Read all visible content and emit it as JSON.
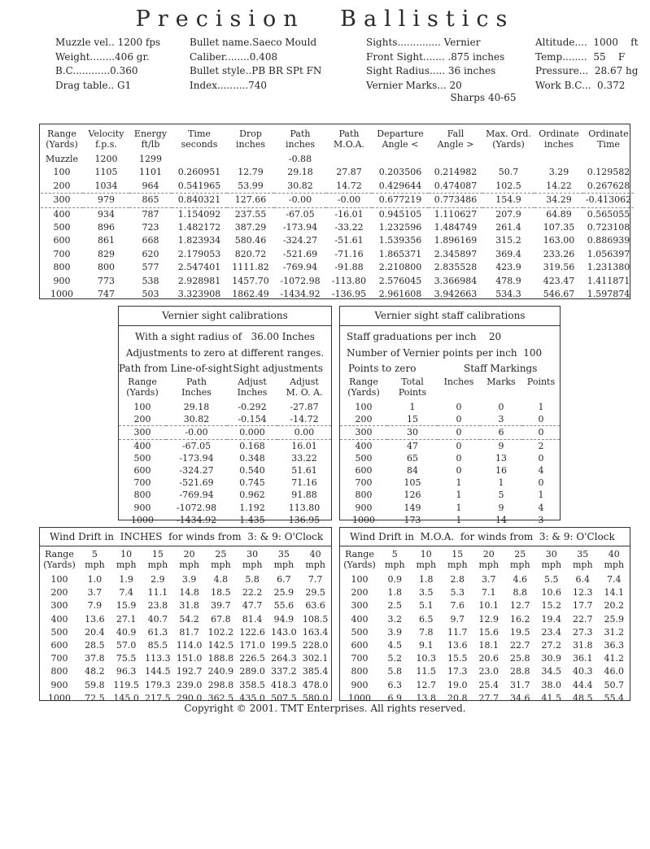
{
  "page_title": "P r e c i s i o n   B a l l i s t i c s",
  "title_plain": "Precision Ballistics",
  "info": {
    "column1": [
      "Muzzle vel.. 1200 fps",
      "Weight........406 gr.",
      "B.C............0.360",
      "Drag table.. G1"
    ],
    "column2": [
      "Bullet name.Saeco Mould",
      "Caliber........0.408",
      "Bullet style..PB BR SPt FN",
      "Index..........740"
    ],
    "column3": [
      "Sights.............. Vernier",
      "Front Sight....... .875 inches",
      "Sight Radius..... 36 inches",
      "Vernier Marks... 20"
    ],
    "column4": [
      "Altitude....  1000    ft",
      "Temp........  55    F",
      "Pressure...  28.67 hg",
      "Work B.C...  0.372"
    ],
    "rifle_name": "Sharps 40-65"
  },
  "ballistics_table": {
    "headers": [
      "Range\n(Yards)",
      "Velocity\nf.p.s.",
      "Energy\nft/lb",
      "Time\nseconds",
      "Drop\ninches",
      "Path\ninches",
      "Path\nM.O.A.",
      "Departure\nAngle <",
      "Fall\nAngle >",
      "Max. Ord.\n(Yards)",
      "Ordinate\ninches",
      "Ordinate\nTime"
    ],
    "zero_row": 3,
    "rows": [
      [
        "Muzzle",
        "1200",
        "1299",
        "",
        "",
        "-0.88",
        "",
        "",
        "",
        "",
        "",
        ""
      ],
      [
        "100",
        "1105",
        "1101",
        "0.260951",
        "12.79",
        "29.18",
        "27.87",
        "0.203506",
        "0.214982",
        "50.7",
        "3.29",
        "0.129582"
      ],
      [
        "200",
        "1034",
        "964",
        "0.541965",
        "53.99",
        "30.82",
        "14.72",
        "0.429644",
        "0.474087",
        "102.5",
        "14.22",
        "0.267628"
      ],
      [
        "300",
        "979",
        "865",
        "0.840321",
        "127.66",
        "-0.00",
        "-0.00",
        "0.677219",
        "0.773486",
        "154.9",
        "34.29",
        "-0.413062"
      ],
      [
        "400",
        "934",
        "787",
        "1.154092",
        "237.55",
        "-67.05",
        "-16.01",
        "0.945105",
        "1.110627",
        "207.9",
        "64.89",
        "0.565055"
      ],
      [
        "500",
        "896",
        "723",
        "1.482172",
        "387.29",
        "-173.94",
        "-33.22",
        "1.232596",
        "1.484749",
        "261.4",
        "107.35",
        "0.723108"
      ],
      [
        "600",
        "861",
        "668",
        "1.823934",
        "580.46",
        "-324.27",
        "-51.61",
        "1.539356",
        "1.896169",
        "315.2",
        "163.00",
        "0.886939"
      ],
      [
        "700",
        "829",
        "620",
        "2.179053",
        "820.72",
        "-521.69",
        "-71.16",
        "1.865371",
        "2.345897",
        "369.4",
        "233.26",
        "1.056397"
      ],
      [
        "800",
        "800",
        "577",
        "2.547401",
        "1111.82",
        "-769.94",
        "-91.88",
        "2.210800",
        "2.835528",
        "423.9",
        "319.56",
        "1.231380"
      ],
      [
        "900",
        "773",
        "538",
        "2.928981",
        "1457.70",
        "-1072.98",
        "-113.80",
        "2.576045",
        "3.366984",
        "478.9",
        "423.47",
        "1.411871"
      ],
      [
        "1000",
        "747",
        "503",
        "3.323908",
        "1862.49",
        "-1434.92",
        "-136.95",
        "2.961608",
        "3.942663",
        "534.3",
        "546.67",
        "1.597874"
      ]
    ]
  },
  "vernier_table": {
    "title": "Vernier sight calibrations",
    "subtitle1": "With a sight radius of   36.00 Inches",
    "subtitle2": "Adjustments to zero at different ranges.",
    "group_left": "Path from Line-of-sight",
    "group_right": "Sight adjustments",
    "headers": [
      "Range\n(Yards)",
      "Path\nInches",
      "Adjust\nInches",
      "Adjust\nM. O. A."
    ],
    "zero_row": 2,
    "rows": [
      [
        "100",
        "29.18",
        "-0.292",
        "-27.87"
      ],
      [
        "200",
        "30.82",
        "-0.154",
        "-14.72"
      ],
      [
        "300",
        "-0.00",
        "0.000",
        "0.00"
      ],
      [
        "400",
        "-67.05",
        "0.168",
        "16.01"
      ],
      [
        "500",
        "-173.94",
        "0.348",
        "33.22"
      ],
      [
        "600",
        "-324.27",
        "0.540",
        "51.61"
      ],
      [
        "700",
        "-521.69",
        "0.745",
        "71.16"
      ],
      [
        "800",
        "-769.94",
        "0.962",
        "91.88"
      ],
      [
        "900",
        "-1072.98",
        "1.192",
        "113.80"
      ],
      [
        "1000",
        "-1434.92",
        "1.435",
        "136.95"
      ]
    ]
  },
  "staff_table": {
    "title": "Vernier sight staff calibrations",
    "subtitle1": "Staff graduations per inch    20",
    "subtitle2": "Number of Vernier points per inch  100",
    "group_left": "Points to zero",
    "group_right": "Staff Markings",
    "headers": [
      "Range\n(Yards)",
      "Total\nPoints",
      "Inches",
      "Marks",
      "Points"
    ],
    "zero_row": 2,
    "rows": [
      [
        "100",
        "1",
        "0",
        "0",
        "1"
      ],
      [
        "200",
        "15",
        "0",
        "3",
        "0"
      ],
      [
        "300",
        "30",
        "0",
        "6",
        "0"
      ],
      [
        "400",
        "47",
        "0",
        "9",
        "2"
      ],
      [
        "500",
        "65",
        "0",
        "13",
        "0"
      ],
      [
        "600",
        "84",
        "0",
        "16",
        "4"
      ],
      [
        "700",
        "105",
        "1",
        "1",
        "0"
      ],
      [
        "800",
        "126",
        "1",
        "5",
        "1"
      ],
      [
        "900",
        "149",
        "1",
        "9",
        "4"
      ],
      [
        "1000",
        "173",
        "1",
        "14",
        "3"
      ]
    ]
  },
  "wind_inches_table": {
    "title": "Wind Drift in  INCHES  for winds from  3: & 9: O'Clock",
    "headers": [
      "Range\n(Yards)",
      "5\nmph",
      "10\nmph",
      "15\nmph",
      "20\nmph",
      "25\nmph",
      "30\nmph",
      "35\nmph",
      "40\nmph"
    ],
    "rows": [
      [
        "100",
        "1.0",
        "1.9",
        "2.9",
        "3.9",
        "4.8",
        "5.8",
        "6.7",
        "7.7"
      ],
      [
        "200",
        "3.7",
        "7.4",
        "11.1",
        "14.8",
        "18.5",
        "22.2",
        "25.9",
        "29.5"
      ],
      [
        "300",
        "7.9",
        "15.9",
        "23.8",
        "31.8",
        "39.7",
        "47.7",
        "55.6",
        "63.6"
      ],
      [
        "400",
        "13.6",
        "27.1",
        "40.7",
        "54.2",
        "67.8",
        "81.4",
        "94.9",
        "108.5"
      ],
      [
        "500",
        "20.4",
        "40.9",
        "61.3",
        "81.7",
        "102.2",
        "122.6",
        "143.0",
        "163.4"
      ],
      [
        "600",
        "28.5",
        "57.0",
        "85.5",
        "114.0",
        "142.5",
        "171.0",
        "199.5",
        "228.0"
      ],
      [
        "700",
        "37.8",
        "75.5",
        "113.3",
        "151.0",
        "188.8",
        "226.5",
        "264.3",
        "302.1"
      ],
      [
        "800",
        "48.2",
        "96.3",
        "144.5",
        "192.7",
        "240.9",
        "289.0",
        "337.2",
        "385.4"
      ],
      [
        "900",
        "59.8",
        "119.5",
        "179.3",
        "239.0",
        "298.8",
        "358.5",
        "418.3",
        "478.0"
      ],
      [
        "1000",
        "72.5",
        "145.0",
        "217.5",
        "290.0",
        "362.5",
        "435.0",
        "507.5",
        "580.0"
      ]
    ]
  },
  "wind_moa_table": {
    "title": "Wind Drift in  M.O.A.  for winds from  3: & 9: O'Clock",
    "headers": [
      "Range\n(Yards)",
      "5\nmph",
      "10\nmph",
      "15\nmph",
      "20\nmph",
      "25\nmph",
      "30\nmph",
      "35\nmph",
      "40\nmph"
    ],
    "rows": [
      [
        "100",
        "0.9",
        "1.8",
        "2.8",
        "3.7",
        "4.6",
        "5.5",
        "6.4",
        "7.4"
      ],
      [
        "200",
        "1.8",
        "3.5",
        "5.3",
        "7.1",
        "8.8",
        "10.6",
        "12.3",
        "14.1"
      ],
      [
        "300",
        "2.5",
        "5.1",
        "7.6",
        "10.1",
        "12.7",
        "15.2",
        "17.7",
        "20.2"
      ],
      [
        "400",
        "3.2",
        "6.5",
        "9.7",
        "12.9",
        "16.2",
        "19.4",
        "22.7",
        "25.9"
      ],
      [
        "500",
        "3.9",
        "7.8",
        "11.7",
        "15.6",
        "19.5",
        "23.4",
        "27.3",
        "31.2"
      ],
      [
        "600",
        "4.5",
        "9.1",
        "13.6",
        "18.1",
        "22.7",
        "27.2",
        "31.8",
        "36.3"
      ],
      [
        "700",
        "5.2",
        "10.3",
        "15.5",
        "20.6",
        "25.8",
        "30.9",
        "36.1",
        "41.2"
      ],
      [
        "800",
        "5.8",
        "11.5",
        "17.3",
        "23.0",
        "28.8",
        "34.5",
        "40.3",
        "46.0"
      ],
      [
        "900",
        "6.3",
        "12.7",
        "19.0",
        "25.4",
        "31.7",
        "38.0",
        "44.4",
        "50.7"
      ],
      [
        "1000",
        "6.9",
        "13.8",
        "20.8",
        "27.7",
        "34.6",
        "41.5",
        "48.5",
        "55.4"
      ]
    ]
  },
  "footer": {
    "copyright": "Copyright © 2001. TMT Enterprises. All rights reserved."
  }
}
